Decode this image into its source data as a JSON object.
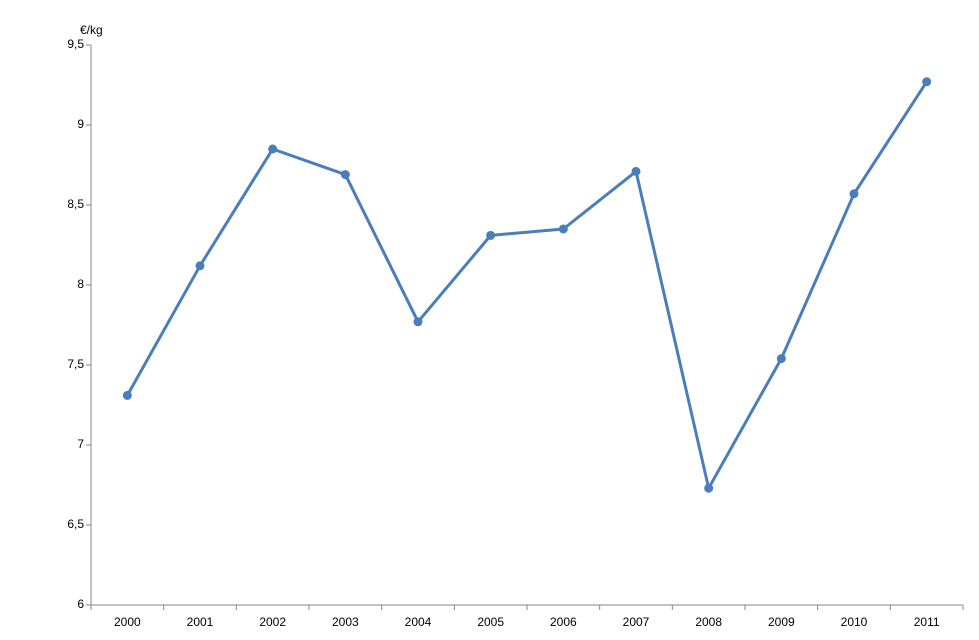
{
  "chart_data": {
    "type": "line",
    "y_label": "€/kg",
    "categories": [
      "2000",
      "2001",
      "2002",
      "2003",
      "2004",
      "2005",
      "2006",
      "2007",
      "2008",
      "2009",
      "2010",
      "2011"
    ],
    "series": [
      {
        "name": "€/kg",
        "color": "#4a7ebb",
        "values": [
          7.31,
          8.12,
          8.85,
          8.69,
          7.77,
          8.31,
          8.35,
          8.71,
          6.73,
          7.54,
          8.57,
          9.27
        ]
      }
    ],
    "ylim": [
      6,
      9.5
    ],
    "yticks": [
      6,
      {
        "value": 6.5,
        "label": "6,5"
      },
      7,
      {
        "value": 7.5,
        "label": "7,5"
      },
      8,
      {
        "value": 8.5,
        "label": "8,5"
      },
      9,
      {
        "value": 9.5,
        "label": "9,5"
      }
    ],
    "grid": false
  }
}
